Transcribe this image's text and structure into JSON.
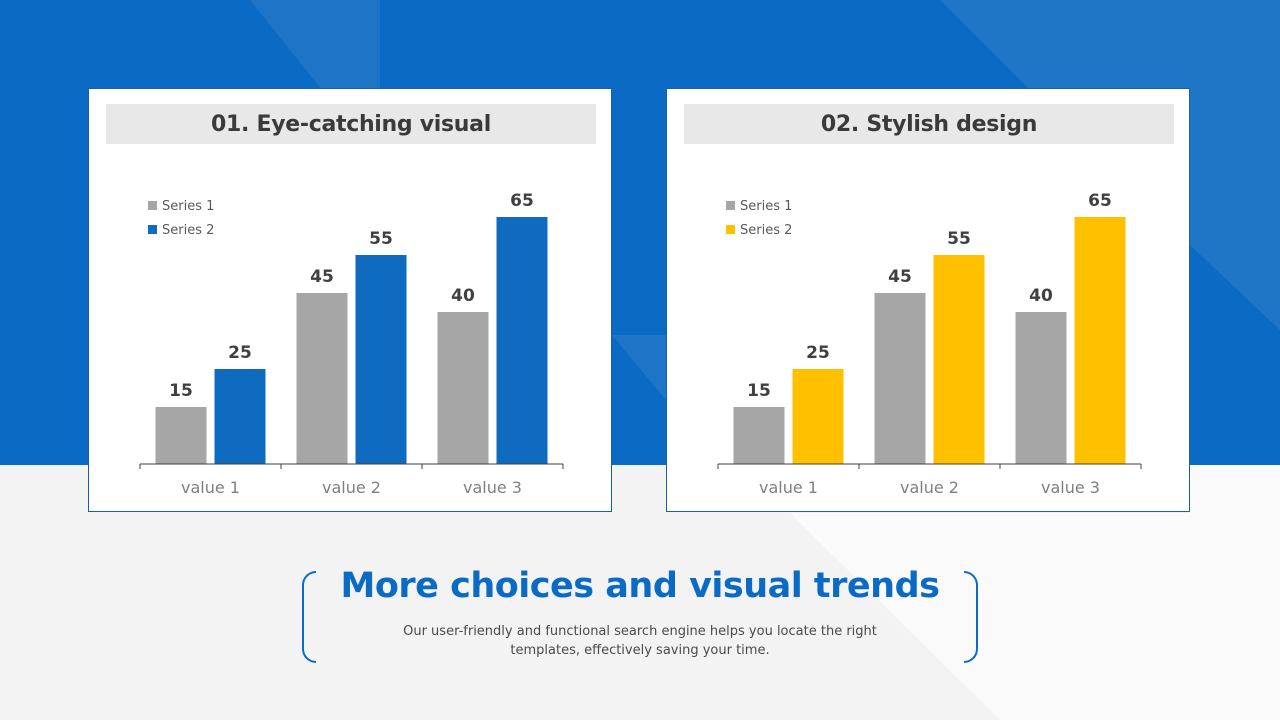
{
  "theme": {
    "background_blue": "#0b6bc4",
    "background_light": "#f3f3f3",
    "gray": "#a6a6a6",
    "blue": "#0e6bbf",
    "yellow": "#ffc000"
  },
  "headline": "More choices and visual trends",
  "subtext": "Our user-friendly and functional search engine helps you locate the right templates, effectively saving your time.",
  "chart_data": [
    {
      "type": "bar",
      "title": "01. Eye-catching visual",
      "categories": [
        "value 1",
        "value 2",
        "value 3"
      ],
      "series": [
        {
          "name": "Series 1",
          "values": [
            15,
            45,
            40
          ],
          "color": "#a6a6a6"
        },
        {
          "name": "Series 2",
          "values": [
            25,
            55,
            65
          ],
          "color": "#0e6bbf"
        }
      ],
      "ylim": [
        0,
        65
      ],
      "legend": "top-left",
      "grid": false
    },
    {
      "type": "bar",
      "title": "02. Stylish design",
      "categories": [
        "value 1",
        "value 2",
        "value 3"
      ],
      "series": [
        {
          "name": "Series 1",
          "values": [
            15,
            45,
            40
          ],
          "color": "#a6a6a6"
        },
        {
          "name": "Series 2",
          "values": [
            25,
            55,
            65
          ],
          "color": "#ffc000"
        }
      ],
      "ylim": [
        0,
        65
      ],
      "legend": "top-left",
      "grid": false
    }
  ]
}
